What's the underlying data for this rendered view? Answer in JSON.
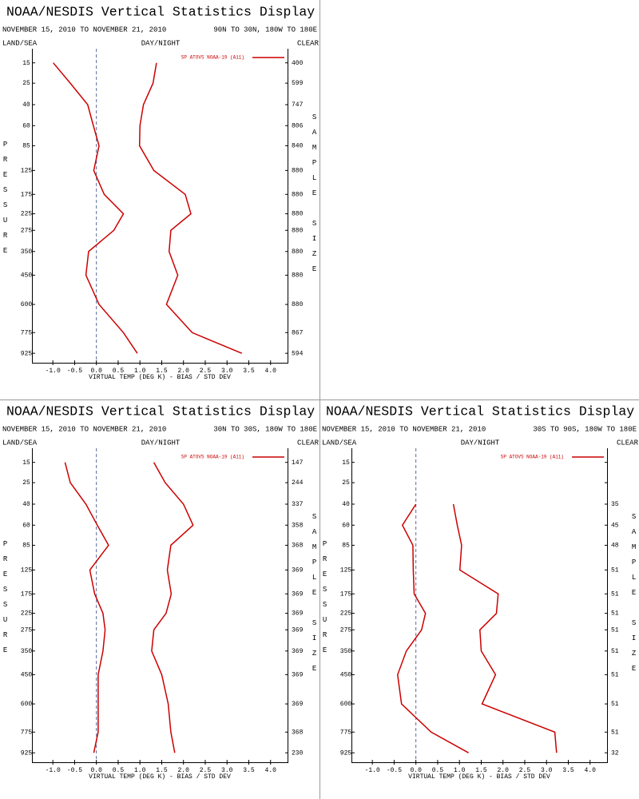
{
  "chart_data": [
    {
      "type": "line",
      "title": "NOAA/NESDIS Vertical Statistics Display",
      "subtitle": "NOVEMBER 15, 2010 TO NOVEMBER 21, 2010",
      "region": "90N TO 30N, 180W TO 180E",
      "left_header": "LAND/SEA",
      "center_header": "DAY/NIGHT",
      "right_header": "CLEAR",
      "xlabel": "VIRTUAL TEMP (DEG K) - BIAS / STD DEV",
      "ylabel": "PRESSURE",
      "y2label": "SAMPLE SIZE",
      "legend": "SP ATOVS NOAA-19 (A11)",
      "yscale": "pressure-kappa",
      "ylim": [
        10,
        1000
      ],
      "xlim": [
        -1.48,
        4.39
      ],
      "y": [
        15,
        25,
        40,
        60,
        85,
        125,
        175,
        225,
        275,
        350,
        450,
        600,
        775,
        925
      ],
      "yticks": [
        15,
        25,
        40,
        60,
        85,
        125,
        175,
        225,
        275,
        350,
        450,
        600,
        775,
        925
      ],
      "xticks": [
        {
          "value": -1,
          "label": "-1.0"
        },
        {
          "value": -0.5,
          "label": "-0.5"
        },
        {
          "value": 0,
          "label": "0.0"
        },
        {
          "value": 0.5,
          "label": "0.5"
        },
        {
          "value": 1,
          "label": "1.0"
        },
        {
          "value": 1.5,
          "label": "1.5"
        },
        {
          "value": 2,
          "label": "2.0"
        },
        {
          "value": 2.5,
          "label": "2.5"
        },
        {
          "value": 3,
          "label": "3.0"
        },
        {
          "value": 3.5,
          "label": "3.5"
        },
        {
          "value": 4,
          "label": "4.0"
        }
      ],
      "sample_size": [
        400,
        599,
        747,
        806,
        840,
        880,
        880,
        880,
        880,
        880,
        880,
        880,
        867,
        594
      ],
      "series": [
        {
          "color": "#cc0000",
          "values": [
            -0.99,
            -0.6,
            -0.2,
            -0.07,
            0.06,
            -0.06,
            0.18,
            0.62,
            0.4,
            -0.18,
            -0.24,
            0.06,
            0.62,
            0.94
          ]
        },
        {
          "color": "#cc0000",
          "values": [
            1.38,
            1.3,
            1.08,
            1.0,
            0.99,
            1.32,
            2.04,
            2.17,
            1.71,
            1.67,
            1.87,
            1.61,
            2.2,
            3.34
          ]
        }
      ]
    },
    {
      "type": "line",
      "title": "NOAA/NESDIS Vertical Statistics Display",
      "subtitle": "NOVEMBER 15, 2010 TO NOVEMBER 21, 2010",
      "region": "30N TO 30S, 180W TO 180E",
      "left_header": "LAND/SEA",
      "center_header": "DAY/NIGHT",
      "right_header": "CLEAR",
      "xlabel": "VIRTUAL TEMP (DEG K) - BIAS / STD DEV",
      "ylabel": "PRESSURE",
      "y2label": "SAMPLE SIZE",
      "legend": "SP ATOVS NOAA-19 (A11)",
      "yscale": "pressure-kappa",
      "ylim": [
        10,
        1000
      ],
      "xlim": [
        -1.48,
        4.39
      ],
      "y": [
        15,
        25,
        40,
        60,
        85,
        125,
        175,
        225,
        275,
        350,
        450,
        600,
        775,
        925
      ],
      "yticks": [
        15,
        25,
        40,
        60,
        85,
        125,
        175,
        225,
        275,
        350,
        450,
        600,
        775,
        925
      ],
      "xticks": [
        {
          "value": -1,
          "label": "-1.0"
        },
        {
          "value": -0.5,
          "label": "-0.5"
        },
        {
          "value": 0,
          "label": "0.0"
        },
        {
          "value": 0.5,
          "label": "0.5"
        },
        {
          "value": 1,
          "label": "1.0"
        },
        {
          "value": 1.5,
          "label": "1.5"
        },
        {
          "value": 2,
          "label": "2.0"
        },
        {
          "value": 2.5,
          "label": "2.5"
        },
        {
          "value": 3,
          "label": "3.0"
        },
        {
          "value": 3.5,
          "label": "3.5"
        },
        {
          "value": 4,
          "label": "4.0"
        }
      ],
      "sample_size": [
        147,
        244,
        337,
        358,
        368,
        369,
        369,
        369,
        369,
        369,
        369,
        369,
        368,
        230
      ],
      "series": [
        {
          "color": "#cc0000",
          "values": [
            -0.72,
            -0.6,
            -0.24,
            0.02,
            0.28,
            -0.15,
            -0.04,
            0.15,
            0.2,
            0.15,
            0.04,
            0.04,
            0.04,
            -0.06
          ]
        },
        {
          "color": "#cc0000",
          "values": [
            1.32,
            1.58,
            2.0,
            2.22,
            1.71,
            1.63,
            1.72,
            1.6,
            1.32,
            1.27,
            1.5,
            1.65,
            1.71,
            1.8
          ]
        }
      ]
    },
    {
      "type": "line",
      "title": "NOAA/NESDIS Vertical Statistics Display",
      "subtitle": "NOVEMBER 15, 2010 TO NOVEMBER 21, 2010",
      "region": "30S TO 90S, 180W TO 180E",
      "left_header": "LAND/SEA",
      "center_header": "DAY/NIGHT",
      "right_header": "CLEAR",
      "xlabel": "VIRTUAL TEMP (DEG K) - BIAS / STD DEV",
      "ylabel": "PRESSURE",
      "y2label": "SAMPLE SIZE",
      "legend": "SP ATOVS NOAA-19 (A11)",
      "yscale": "pressure-kappa",
      "ylim": [
        10,
        1000
      ],
      "xlim": [
        -1.48,
        4.39
      ],
      "y": [
        15,
        25,
        40,
        60,
        85,
        125,
        175,
        225,
        275,
        350,
        450,
        600,
        775,
        925
      ],
      "yticks": [
        15,
        25,
        40,
        60,
        85,
        125,
        175,
        225,
        275,
        350,
        450,
        600,
        775,
        925
      ],
      "xticks": [
        {
          "value": -1,
          "label": "-1.0"
        },
        {
          "value": -0.5,
          "label": "-0.5"
        },
        {
          "value": 0,
          "label": "0.0"
        },
        {
          "value": 0.5,
          "label": "0.5"
        },
        {
          "value": 1,
          "label": "1.0"
        },
        {
          "value": 1.5,
          "label": "1.5"
        },
        {
          "value": 2,
          "label": "2.0"
        },
        {
          "value": 2.5,
          "label": "2.5"
        },
        {
          "value": 3,
          "label": "3.0"
        },
        {
          "value": 3.5,
          "label": "3.5"
        },
        {
          "value": 4,
          "label": "4.0"
        }
      ],
      "sample_size": [
        null,
        null,
        35,
        45,
        48,
        51,
        51,
        51,
        51,
        51,
        51,
        51,
        51,
        32
      ],
      "series": [
        {
          "color": "#cc0000",
          "values": [
            null,
            null,
            0.0,
            -0.31,
            -0.07,
            -0.06,
            -0.04,
            0.22,
            0.13,
            -0.22,
            -0.42,
            -0.33,
            0.35,
            1.21
          ]
        },
        {
          "color": "#cc0000",
          "values": [
            null,
            null,
            0.86,
            0.95,
            1.05,
            1.01,
            1.89,
            1.85,
            1.47,
            1.5,
            1.83,
            1.52,
            3.19,
            3.23
          ]
        }
      ]
    }
  ]
}
